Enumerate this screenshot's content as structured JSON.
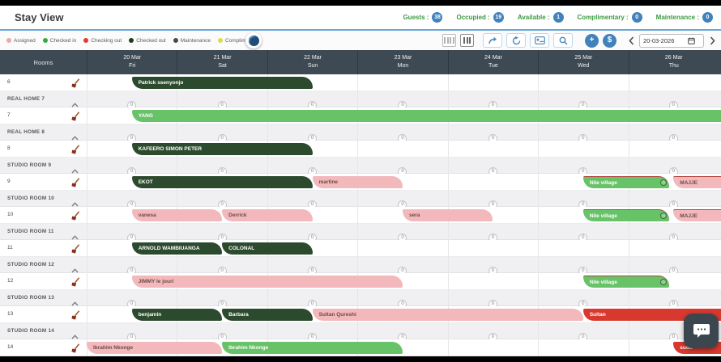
{
  "title": "Stay View",
  "stats": [
    {
      "label": "Guests",
      "value": "38"
    },
    {
      "label": "Occupied",
      "value": "19"
    },
    {
      "label": "Available",
      "value": "1"
    },
    {
      "label": "Complimentary",
      "value": "0"
    },
    {
      "label": "Maintenance",
      "value": "0"
    }
  ],
  "legend": [
    {
      "label": "Assigned",
      "color": "#efa6ab"
    },
    {
      "label": "Checked in",
      "color": "#35aa3f"
    },
    {
      "label": "Checking out",
      "color": "#e23a31"
    },
    {
      "label": "Checked out",
      "color": "#1e3d1e"
    },
    {
      "label": "Maintenance",
      "color": "#4a4a4a"
    },
    {
      "label": "Complimentary",
      "color": "#d6de50"
    }
  ],
  "toolbar": {
    "date": "20-03-2026",
    "add_label": "+",
    "money_label": "$",
    "icon_names": [
      "grid-view-icon",
      "column-view-icon",
      "share-icon",
      "refresh-icon",
      "room-card-icon",
      "search-icon",
      "add-booking-button",
      "payment-button",
      "chevron-left-icon",
      "calendar-icon",
      "chevron-right-icon",
      "night-audit-icon",
      "broom-icon",
      "chevron-up-icon",
      "chat-bubble-icon"
    ]
  },
  "grid": {
    "rooms_header": "Rooms",
    "days": [
      {
        "date": "20 Mar",
        "dow": "Fri"
      },
      {
        "date": "21 Mar",
        "dow": "Sat"
      },
      {
        "date": "22 Mar",
        "dow": "Sun"
      },
      {
        "date": "23 Mar",
        "dow": "Mon"
      },
      {
        "date": "24 Mar",
        "dow": "Tue"
      },
      {
        "date": "25 Mar",
        "dow": "Wed"
      },
      {
        "date": "26 Mar",
        "dow": "Thu"
      }
    ],
    "rows": [
      {
        "type": "room",
        "label": "6",
        "bookings": [
          {
            "name": "Patrick ssenyonjo",
            "status": "checked_out",
            "start": 0.5,
            "end": 2.5
          }
        ]
      },
      {
        "type": "group",
        "label": "REAL HOME 7",
        "zeros": [
          "0",
          "0",
          "0",
          "0",
          "0",
          "0",
          "0"
        ]
      },
      {
        "type": "room",
        "label": "7",
        "bookings": [
          {
            "name": "YANG",
            "status": "checked_in",
            "start": 0.5,
            "end": 7,
            "clip_right": true
          }
        ]
      },
      {
        "type": "group",
        "label": "REAL HOME 8",
        "zeros": [
          "0",
          "0",
          "0",
          "0",
          "0",
          "0",
          "0"
        ]
      },
      {
        "type": "room",
        "label": "8",
        "bookings": [
          {
            "name": "KAFEERO SIMON PETER",
            "status": "checked_out",
            "start": 0.5,
            "end": 2.5
          }
        ]
      },
      {
        "type": "group",
        "label": "STUDIO ROOM 9",
        "zeros": [
          "0",
          "0",
          "0",
          "0",
          "0",
          "0",
          "0"
        ]
      },
      {
        "type": "room",
        "label": "9",
        "bookings": [
          {
            "name": "EKOT",
            "status": "checked_out",
            "start": 0.5,
            "end": 2.5
          },
          {
            "name": "martine",
            "status": "assigned",
            "start": 2.5,
            "end": 3.5
          },
          {
            "name": "Nile village",
            "status": "checked_in",
            "start": 5.5,
            "end": 6.45,
            "alert_border": true,
            "badge": true
          },
          {
            "name": "MAJJE",
            "status": "assigned",
            "start": 6.5,
            "end": 7,
            "alert_border": true,
            "clip_right": true
          }
        ]
      },
      {
        "type": "group",
        "label": "STUDIO ROOM 10",
        "zeros": [
          "0",
          "0",
          "0",
          "0",
          "0",
          "0",
          "0"
        ]
      },
      {
        "type": "room",
        "label": "10",
        "bookings": [
          {
            "name": "vanesa",
            "status": "assigned",
            "start": 0.5,
            "end": 1.5
          },
          {
            "name": "Derrick",
            "status": "assigned",
            "start": 1.5,
            "end": 2.5
          },
          {
            "name": "sera",
            "status": "assigned",
            "start": 3.5,
            "end": 4.5
          },
          {
            "name": "Nile village",
            "status": "checked_in",
            "start": 5.5,
            "end": 6.45,
            "alert_border": true,
            "badge": true
          },
          {
            "name": "MAJJE",
            "status": "assigned",
            "start": 6.5,
            "end": 7,
            "alert_border": true,
            "clip_right": true
          }
        ]
      },
      {
        "type": "group",
        "label": "STUDIO ROOM 11",
        "zeros": [
          "0",
          "0",
          "0",
          "0",
          "0",
          "0",
          "0"
        ]
      },
      {
        "type": "room",
        "label": "11",
        "bookings": [
          {
            "name": "ARNOLD WAMBIUANGA",
            "status": "checked_out",
            "start": 0.5,
            "end": 1.5
          },
          {
            "name": "COLONAL",
            "status": "checked_out",
            "start": 1.5,
            "end": 2.5
          }
        ]
      },
      {
        "type": "group",
        "label": "STUDIO ROOM 12",
        "zeros": [
          "0",
          "0",
          "0",
          "0",
          "0",
          "0",
          "0"
        ]
      },
      {
        "type": "room",
        "label": "12",
        "bookings": [
          {
            "name": "JIMMY le jouri",
            "status": "assigned",
            "start": 0.5,
            "end": 3.5
          },
          {
            "name": "Nile village",
            "status": "checked_in",
            "start": 5.5,
            "end": 6.45,
            "alert_border": true,
            "badge": true
          }
        ]
      },
      {
        "type": "group",
        "label": "STUDIO ROOM 13",
        "zeros": [
          "0",
          "0",
          "0",
          "0",
          "0",
          "0",
          "0"
        ]
      },
      {
        "type": "room",
        "label": "13",
        "bookings": [
          {
            "name": "benjamin",
            "status": "checked_out",
            "start": 0.5,
            "end": 1.5
          },
          {
            "name": "Barbara",
            "status": "checked_out",
            "start": 1.5,
            "end": 2.5
          },
          {
            "name": "Sultan Qureshi",
            "status": "assigned",
            "start": 2.5,
            "end": 5.5
          },
          {
            "name": "Sultan",
            "status": "checking_out",
            "start": 5.5,
            "end": 7,
            "clip_right": true
          }
        ]
      },
      {
        "type": "group",
        "label": "STUDIO ROOM 14",
        "zeros": [
          "0",
          "0",
          "0",
          "0",
          "0",
          "0",
          "0"
        ]
      },
      {
        "type": "room",
        "label": "14",
        "bookings": [
          {
            "name": "Ibrahim Nkonge",
            "status": "assigned",
            "start": 0,
            "end": 1.5
          },
          {
            "name": "Ibrahim Nkonge",
            "status": "checked_in",
            "start": 1.5,
            "end": 3.5
          },
          {
            "name": "suda",
            "status": "checking_out",
            "start": 6.5,
            "end": 7,
            "clip_right": true
          }
        ]
      }
    ]
  },
  "status_colors": {
    "assigned": {
      "bg": "#f2b8bb",
      "text": "#6e4b47"
    },
    "checked_in": {
      "bg": "#67c268",
      "text": "#ffffff"
    },
    "checked_out": {
      "bg": "#2c4a2d",
      "text": "#ffffff"
    },
    "checking_out": {
      "bg": "#d8382e",
      "text": "#ffffff"
    }
  }
}
